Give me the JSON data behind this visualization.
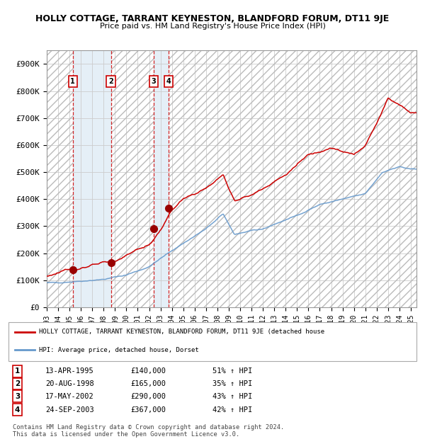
{
  "title": "HOLLY COTTAGE, TARRANT KEYNESTON, BLANDFORD FORUM, DT11 9JE",
  "subtitle": "Price paid vs. HM Land Registry's House Price Index (HPI)",
  "sales": [
    {
      "num": 1,
      "date_str": "13-APR-1995",
      "year": 1995.28,
      "price": 140000,
      "pct": "51% ↑ HPI"
    },
    {
      "num": 2,
      "date_str": "20-AUG-1998",
      "year": 1998.64,
      "price": 165000,
      "pct": "35% ↑ HPI"
    },
    {
      "num": 3,
      "date_str": "17-MAY-2002",
      "year": 2002.38,
      "price": 290000,
      "pct": "43% ↑ HPI"
    },
    {
      "num": 4,
      "date_str": "24-SEP-2003",
      "year": 2003.73,
      "price": 367000,
      "pct": "42% ↑ HPI"
    }
  ],
  "legend_line1": "HOLLY COTTAGE, TARRANT KEYNESTON, BLANDFORD FORUM, DT11 9JE (detached house",
  "legend_line2": "HPI: Average price, detached house, Dorset",
  "footnote1": "Contains HM Land Registry data © Crown copyright and database right 2024.",
  "footnote2": "This data is licensed under the Open Government Licence v3.0.",
  "hpi_color": "#6699cc",
  "price_color": "#cc0000",
  "marker_color": "#990000",
  "xmin": 1993.0,
  "xmax": 2025.5,
  "ymin": 0,
  "ymax": 950000,
  "yticks": [
    0,
    100000,
    200000,
    300000,
    400000,
    500000,
    600000,
    700000,
    800000,
    900000
  ],
  "ylabels": [
    "£0",
    "£100K",
    "£200K",
    "£300K",
    "£400K",
    "£500K",
    "£600K",
    "£700K",
    "£800K",
    "£900K"
  ],
  "hpi_xpts": [
    1993,
    1995,
    1998,
    2000,
    2002,
    2004,
    2007,
    2008.5,
    2009.5,
    2012,
    2015,
    2017,
    2019,
    2021,
    2022.5,
    2024,
    2025
  ],
  "hpi_ypts": [
    90000,
    94000,
    103000,
    120000,
    150000,
    210000,
    290000,
    345000,
    270000,
    290000,
    340000,
    380000,
    400000,
    420000,
    500000,
    520000,
    510000
  ],
  "prop_xpts": [
    1993,
    1995,
    1996,
    1998,
    1999,
    2001,
    2002,
    2003,
    2004,
    2005,
    2007,
    2008.5,
    2009.5,
    2011,
    2012,
    2014,
    2016,
    2018,
    2019,
    2020,
    2021,
    2022,
    2023,
    2024,
    2025
  ],
  "prop_ypts": [
    115000,
    140000,
    145000,
    165000,
    170000,
    215000,
    230000,
    285000,
    360000,
    400000,
    440000,
    490000,
    395000,
    415000,
    440000,
    490000,
    565000,
    590000,
    575000,
    565000,
    600000,
    680000,
    775000,
    750000,
    720000
  ]
}
